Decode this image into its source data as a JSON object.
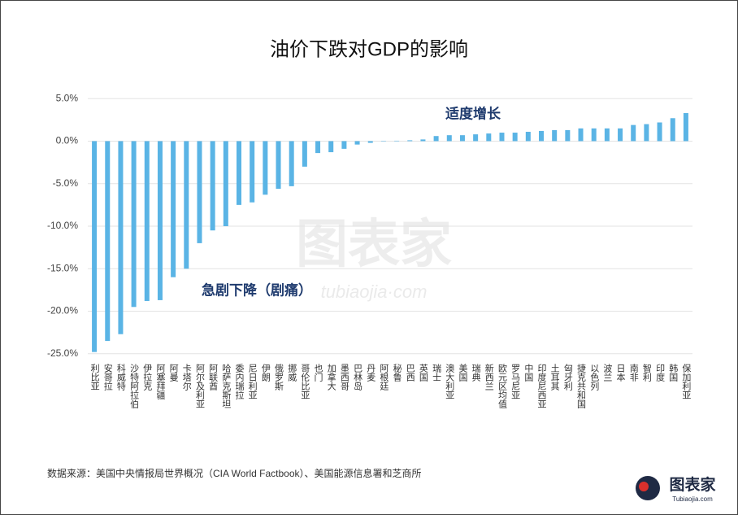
{
  "chart_data": {
    "type": "bar",
    "title": "油价下跌对GDP的影响",
    "categories": [
      "利比亚",
      "安哥拉",
      "科威特",
      "沙特阿拉伯",
      "伊拉克",
      "阿塞拜疆",
      "阿曼",
      "卡塔尔",
      "阿尔及利亚",
      "阿联酋",
      "哈萨克斯坦",
      "委内瑞拉",
      "尼日利亚",
      "伊朗",
      "俄罗斯",
      "挪威",
      "哥伦比亚",
      "也门",
      "加拿大",
      "墨西哥",
      "巴林岛",
      "丹麦",
      "阿根廷",
      "秘鲁",
      "巴西",
      "英国",
      "瑞士",
      "澳大利亚",
      "美国",
      "瑞典",
      "新西兰",
      "欧元区均值",
      "罗马尼亚",
      "中国",
      "印度尼西亚",
      "土耳其",
      "匈牙利",
      "捷克共和国",
      "以色列",
      "波兰",
      "日本",
      "南非",
      "智利",
      "印度",
      "韩国",
      "保加利亚"
    ],
    "values": [
      -24.8,
      -23.5,
      -22.7,
      -19.5,
      -18.8,
      -18.7,
      -16.0,
      -15.0,
      -12.0,
      -10.5,
      -10.0,
      -7.5,
      -7.2,
      -6.3,
      -5.6,
      -5.3,
      -3.0,
      -1.4,
      -1.3,
      -0.9,
      -0.4,
      -0.2,
      0.02,
      0.05,
      0.1,
      0.2,
      0.6,
      0.7,
      0.7,
      0.8,
      0.9,
      1.0,
      1.0,
      1.1,
      1.2,
      1.3,
      1.3,
      1.5,
      1.5,
      1.5,
      1.5,
      1.9,
      2.0,
      2.2,
      2.7,
      3.3
    ],
    "color": "#5ab4e5",
    "ylim": [
      -25.5,
      5.5
    ],
    "yticks": [
      {
        "value": 5,
        "label": "5.0%"
      },
      {
        "value": 0,
        "label": "0.0%"
      },
      {
        "value": -5,
        "label": "-5.0%"
      },
      {
        "value": -10,
        "label": "-10.0%"
      },
      {
        "value": -15,
        "label": "-15.0%"
      },
      {
        "value": -20,
        "label": "-20.0%"
      },
      {
        "value": -25,
        "label": "-25.0%"
      }
    ],
    "grid": true,
    "annotations": [
      "适度增长",
      "急剧下降（剧痛）"
    ],
    "source": "数据来源：美国中央情报局世界概况（CIA World Factbook）、美国能源信息署和芝商所",
    "watermark": "图表家",
    "watermark_sub": "tubiaojia·com",
    "logo": "图表家",
    "logo_sub": "Tubiaojia.com"
  }
}
